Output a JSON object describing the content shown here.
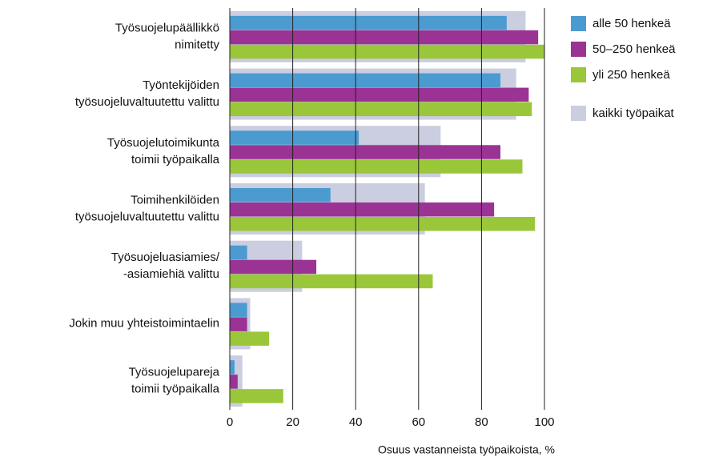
{
  "chart_data": {
    "type": "hbar-overlay",
    "categories": [
      "Työsuojelupäällikkö\nnimitetty",
      "Työntekijöiden\ntyösuojeluvaltuutettu valittu",
      "Työsuojelutoimikunta\ntoimii työpaikalla",
      "Toimihenkilöiden\ntyösuojeluvaltuutettu valittu",
      "Työsuojeluasiamies/\n-asiamiehiä valittu",
      "Jokin muu yhteistoimintaelin",
      "Työsuojelupareja\ntoimii työpaikalla"
    ],
    "series": [
      {
        "name": "alle 50 henkeä",
        "color": "#4b9bd0",
        "values": [
          88,
          86,
          41,
          32,
          5.5,
          5.5,
          1.5
        ]
      },
      {
        "name": "50–250 henkeä",
        "color": "#9b3394",
        "values": [
          98,
          95,
          86,
          84,
          27.5,
          5.5,
          2.5
        ]
      },
      {
        "name": "yli 250 henkeä",
        "color": "#9ac73a",
        "values": [
          100,
          96,
          93,
          97,
          64.5,
          12.5,
          17
        ]
      }
    ],
    "overall": {
      "name": "kaikki työpaikat",
      "color": "#cbcde0",
      "values": [
        94,
        91,
        67,
        62,
        23,
        6.5,
        4
      ]
    },
    "xlabel": "Osuus vastanneista työpaikoista, %",
    "xlim": [
      0,
      100
    ],
    "xticks": [
      0,
      20,
      40,
      60,
      80,
      100
    ],
    "grid": true
  }
}
